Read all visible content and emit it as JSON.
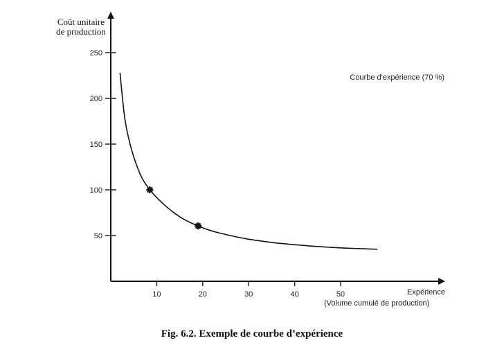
{
  "chart_data": {
    "type": "line",
    "ylabel_line1": "Coût unitaire",
    "ylabel_line2": "de production",
    "xlabel_line1": "Expérience",
    "xlabel_line2": "(Volume cumulé de production)",
    "legend": "Courbe d'expérience (70 %)",
    "xlim": [
      0,
      70
    ],
    "ylim": [
      0,
      250
    ],
    "x_ticks": [
      10,
      20,
      30,
      40,
      50
    ],
    "y_ticks": [
      50,
      100,
      150,
      200,
      250
    ],
    "series": [
      {
        "x": [
          2,
          3,
          4,
          5,
          6,
          7,
          8.5,
          10,
          12,
          14,
          16,
          19,
          22,
          26,
          30,
          35,
          40,
          45,
          50,
          55,
          58
        ],
        "y": [
          228,
          180,
          154,
          136,
          122,
          111,
          100,
          91.5,
          82,
          74,
          67.5,
          60.5,
          55,
          50,
          46,
          42.5,
          40,
          38,
          36.5,
          35.5,
          35
        ]
      }
    ],
    "markers": [
      {
        "x": 8.5,
        "y": 100
      },
      {
        "x": 19,
        "y": 60.5
      }
    ],
    "grid": false
  },
  "caption": "Fig. 6.2. Exemple de courbe d’expérience"
}
